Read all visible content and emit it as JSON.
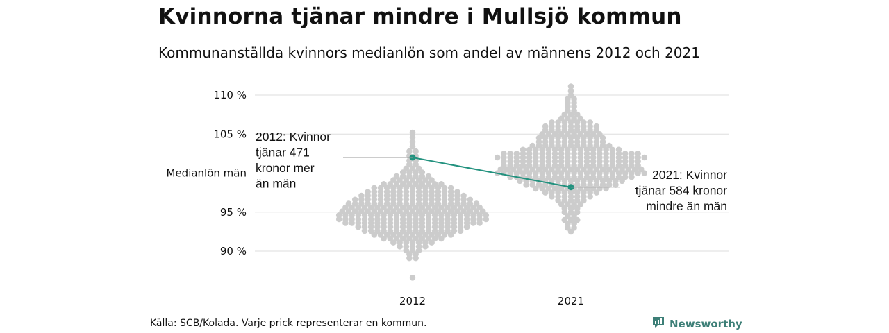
{
  "title": "Kvinnorna tjänar mindre i Mullsjö kommun",
  "subtitle": "Kommunanställda kvinnors medianlön som andel av männens 2012 och 2021",
  "source": "Källa: SCB/Kolada. Varje prick representerar en kommun.",
  "brand": {
    "name": "Newsworthy",
    "icon": "newsworthy-logo-icon",
    "color": "#3d7f77"
  },
  "colors": {
    "dots": "#cccccc",
    "highlight": "#23927f",
    "grid": "#dddddd",
    "reference_line": "#555555",
    "leader_line": "#999999"
  },
  "chart_data": {
    "type": "scatter",
    "subtype": "beeswarm",
    "categories": [
      "2012",
      "2021"
    ],
    "y_ticks": [
      {
        "value": 90,
        "label": "90 %"
      },
      {
        "value": 95,
        "label": "95 %"
      },
      {
        "value": 105,
        "label": "105 %"
      },
      {
        "value": 110,
        "label": "110 %"
      }
    ],
    "ylim": [
      86,
      111
    ],
    "grid": true,
    "reference_line": {
      "value": 100,
      "label": "Medianlön män"
    },
    "highlight": {
      "name": "Mullsjö",
      "values": [
        {
          "x": "2012",
          "y": 102.0
        },
        {
          "x": "2021",
          "y": 98.2
        }
      ]
    },
    "annotations": [
      {
        "x": "2012",
        "y": 102.0,
        "lines": [
          "2012: Kvinnor",
          "tjänar 471",
          "kronor mer",
          "än män"
        ]
      },
      {
        "x": "2021",
        "y": 98.2,
        "lines": [
          "2021: Kvinnor",
          "tjänar 584 kronor",
          "mindre än män"
        ]
      }
    ],
    "distribution_2012": [
      [
        86.6,
        1
      ],
      [
        89.1,
        2
      ],
      [
        89.6,
        2
      ],
      [
        90.1,
        3
      ],
      [
        90.6,
        5
      ],
      [
        91.1,
        7
      ],
      [
        91.6,
        10
      ],
      [
        92.1,
        13
      ],
      [
        92.6,
        16
      ],
      [
        93.1,
        18
      ],
      [
        93.6,
        22
      ],
      [
        94.1,
        24
      ],
      [
        94.6,
        24
      ],
      [
        95.1,
        23
      ],
      [
        95.6,
        22
      ],
      [
        96.1,
        21
      ],
      [
        96.6,
        19
      ],
      [
        97.1,
        17
      ],
      [
        97.6,
        15
      ],
      [
        98.1,
        13
      ],
      [
        98.6,
        10
      ],
      [
        99.1,
        7
      ],
      [
        99.6,
        6
      ],
      [
        100.1,
        4
      ],
      [
        100.6,
        3
      ],
      [
        101.1,
        2
      ],
      [
        101.6,
        2
      ],
      [
        102.2,
        2
      ],
      [
        102.8,
        2
      ],
      [
        103.4,
        1
      ],
      [
        104.0,
        1
      ],
      [
        104.6,
        1
      ],
      [
        105.2,
        1
      ]
    ],
    "distribution_2021": [
      [
        92.5,
        1
      ],
      [
        93.0,
        2
      ],
      [
        93.5,
        2
      ],
      [
        94.0,
        3
      ],
      [
        94.5,
        2
      ],
      [
        95.0,
        3
      ],
      [
        95.5,
        3
      ],
      [
        96.0,
        4
      ],
      [
        96.5,
        5
      ],
      [
        97.0,
        7
      ],
      [
        97.5,
        9
      ],
      [
        98.0,
        12
      ],
      [
        98.5,
        15
      ],
      [
        99.0,
        17
      ],
      [
        99.5,
        20
      ],
      [
        100.0,
        24
      ],
      [
        100.5,
        23
      ],
      [
        101.0,
        22
      ],
      [
        101.5,
        22
      ],
      [
        102.0,
        24
      ],
      [
        102.5,
        22
      ],
      [
        103.0,
        16
      ],
      [
        103.5,
        13
      ],
      [
        104.0,
        11
      ],
      [
        104.5,
        11
      ],
      [
        105.0,
        10
      ],
      [
        105.5,
        9
      ],
      [
        106.0,
        9
      ],
      [
        106.5,
        7
      ],
      [
        107.0,
        4
      ],
      [
        107.5,
        3
      ],
      [
        108.0,
        2
      ],
      [
        108.5,
        2
      ],
      [
        109.0,
        2
      ],
      [
        109.5,
        2
      ],
      [
        110.0,
        1
      ],
      [
        110.5,
        1
      ],
      [
        111.1,
        1
      ]
    ]
  }
}
